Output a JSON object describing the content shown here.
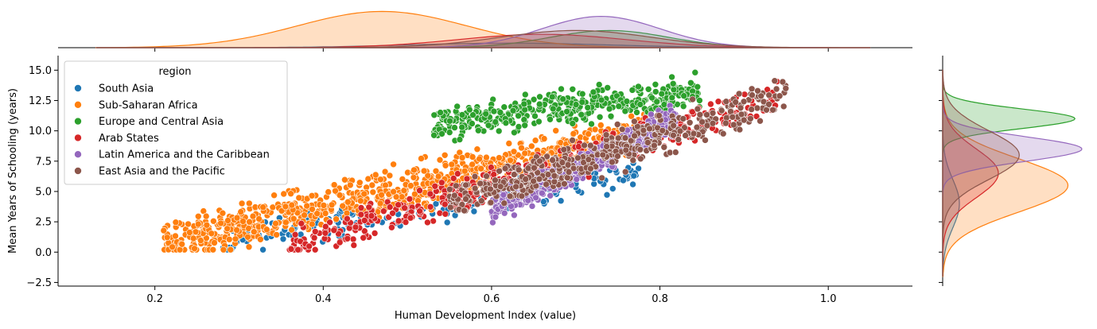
{
  "chart_data": {
    "type": "scatter",
    "title": "",
    "xlabel": "Human Development Index (value)",
    "ylabel": "Mean Years of Schooling (years)",
    "xlim": [
      0.085,
      1.1
    ],
    "ylim": [
      -2.8,
      16.2
    ],
    "xticks": [
      "0.2",
      "0.4",
      "0.6",
      "0.8",
      "1.0"
    ],
    "xtick_values": [
      0.2,
      0.4,
      0.6,
      0.8,
      1.0
    ],
    "yticks": [
      "−2.5",
      "0.0",
      "2.5",
      "5.0",
      "7.5",
      "10.0",
      "12.5",
      "15.0"
    ],
    "ytick_values": [
      -2.5,
      0,
      2.5,
      5,
      7.5,
      10,
      12.5,
      15
    ],
    "grid": false,
    "legend": {
      "title": "region",
      "placement": "upper-left"
    },
    "marginals": {
      "top": "kde of Human Development Index by region",
      "right": "kde of Mean Years of Schooling by region"
    },
    "series": [
      {
        "name": "South Asia",
        "color": "#1f77b4",
        "hdi_range": [
          0.28,
          0.78
        ],
        "mys_at_low": 0.9,
        "mys_at_high": 6.5,
        "spread": 1.0,
        "kde_x": {
          "peak": 0.62,
          "width": 0.12,
          "height": 0.12
        },
        "kde_y": {
          "peak": 4.0,
          "width": 2.0,
          "height": 0.12
        }
      },
      {
        "name": "Sub-Saharan Africa",
        "color": "#ff7f0e",
        "hdi_range": [
          0.21,
          0.8
        ],
        "mys_at_low": 0.7,
        "mys_at_high": 10.0,
        "spread": 1.5,
        "kde_x": {
          "peak": 0.47,
          "width": 0.1,
          "height": 0.95
        },
        "kde_y": {
          "peak": 5.5,
          "width": 2.2,
          "height": 0.9
        }
      },
      {
        "name": "Europe and Central Asia",
        "color": "#2ca02c",
        "hdi_range": [
          0.53,
          0.85
        ],
        "mys_at_low": 10.5,
        "mys_at_high": 13.2,
        "spread": 1.2,
        "kde_x": {
          "peak": 0.74,
          "width": 0.07,
          "height": 0.45
        },
        "kde_y": {
          "peak": 11.0,
          "width": 0.8,
          "height": 0.95
        }
      },
      {
        "name": "Arab States",
        "color": "#d62728",
        "hdi_range": [
          0.36,
          0.94
        ],
        "mys_at_low": 0.4,
        "mys_at_high": 12.8,
        "spread": 1.2,
        "kde_x": {
          "peak": 0.66,
          "width": 0.1,
          "height": 0.35
        },
        "kde_y": {
          "peak": 6.5,
          "width": 2.0,
          "height": 0.4
        }
      },
      {
        "name": "Latin America and the Caribbean",
        "color": "#9467bd",
        "hdi_range": [
          0.6,
          0.82
        ],
        "mys_at_low": 3.5,
        "mys_at_high": 11.0,
        "spread": 1.0,
        "kde_x": {
          "peak": 0.73,
          "width": 0.07,
          "height": 0.82
        },
        "kde_y": {
          "peak": 8.5,
          "width": 1.0,
          "height": 1.0
        }
      },
      {
        "name": "East Asia and the Pacific",
        "color": "#8c564b",
        "hdi_range": [
          0.55,
          0.95
        ],
        "mys_at_low": 4.0,
        "mys_at_high": 13.0,
        "spread": 1.4,
        "kde_x": {
          "peak": 0.7,
          "width": 0.09,
          "height": 0.45
        },
        "kde_y": {
          "peak": 8.0,
          "width": 2.0,
          "height": 0.55
        }
      }
    ]
  }
}
